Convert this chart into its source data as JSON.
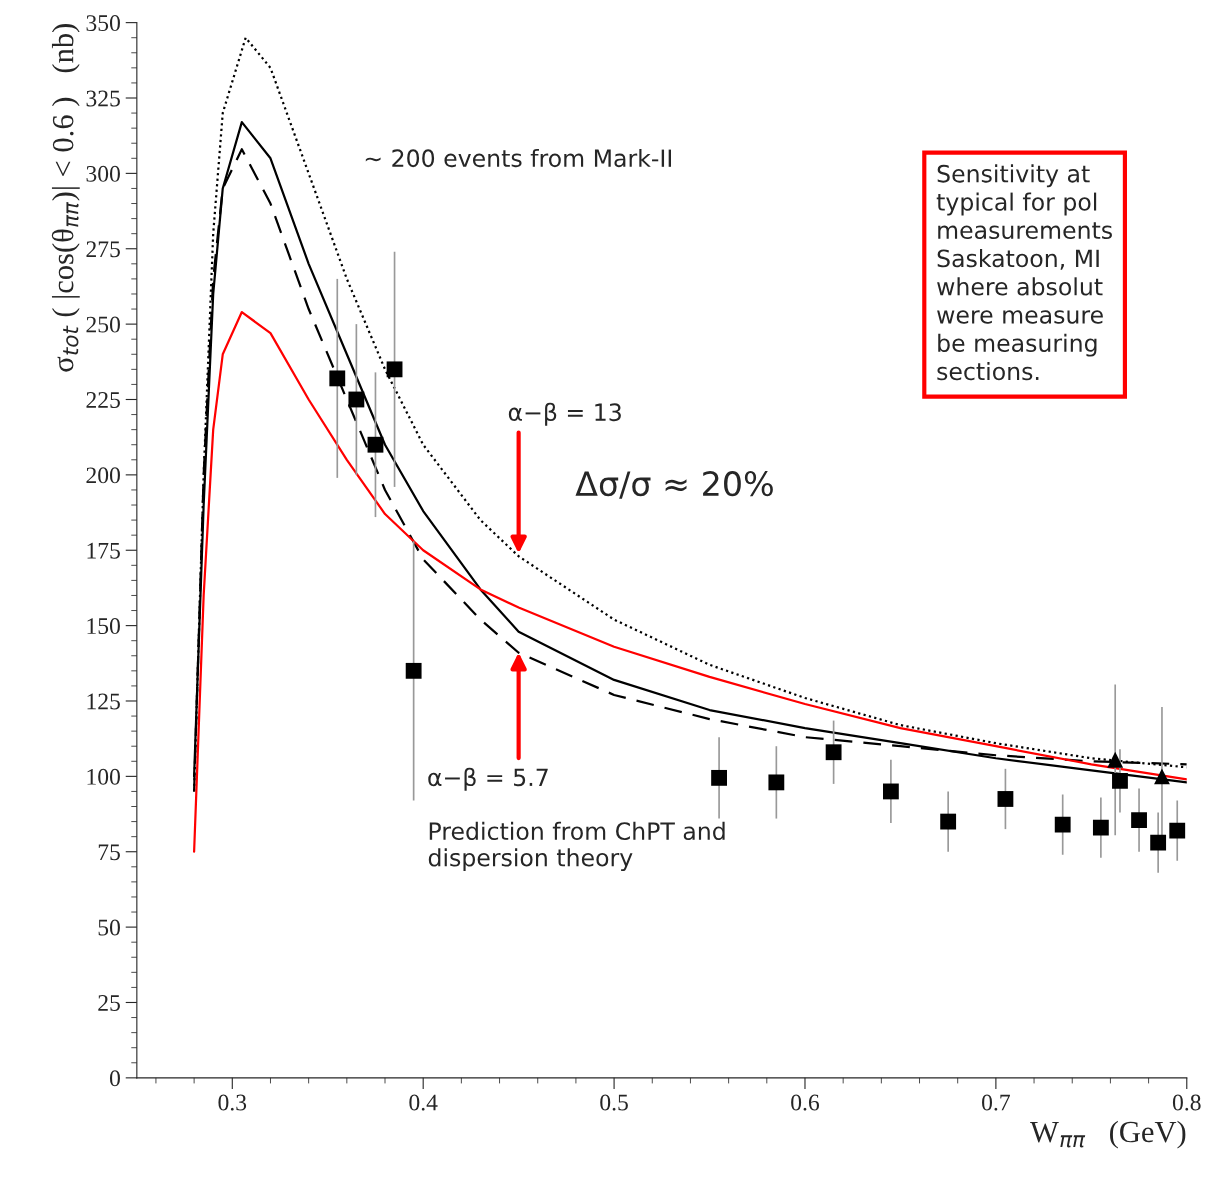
{
  "chart_data": {
    "type": "line",
    "xlabel": "W$_{ππ}$   (GeV)",
    "ylabel": "σ$_{tot}$ ( |cos(θ$_{ππ}$)| < 0.6 )   (nb)",
    "xlim": [
      0.25,
      0.8
    ],
    "xticks": [
      0.3,
      0.4,
      0.5,
      0.6,
      0.7,
      0.8
    ],
    "ylim": [
      0,
      350
    ],
    "yticks": [
      0,
      25,
      50,
      75,
      100,
      125,
      150,
      175,
      200,
      225,
      250,
      275,
      300,
      325,
      350
    ],
    "grid": false,
    "legend": false,
    "series": [
      {
        "color": "#000000",
        "line_style": "dotted",
        "marker": "none",
        "x": [
          0.28,
          0.285,
          0.29,
          0.295,
          0.307,
          0.32,
          0.34,
          0.36,
          0.38,
          0.4,
          0.43,
          0.45,
          0.5,
          0.55,
          0.6,
          0.65,
          0.7,
          0.75,
          0.8
        ],
        "values": [
          95,
          200,
          280,
          320,
          345,
          335,
          300,
          265,
          235,
          210,
          185,
          173,
          152,
          137,
          126,
          117,
          111,
          106,
          103
        ]
      },
      {
        "color": "#000000",
        "line_style": "solid",
        "marker": "none",
        "x": [
          0.28,
          0.285,
          0.29,
          0.295,
          0.305,
          0.32,
          0.34,
          0.36,
          0.38,
          0.4,
          0.43,
          0.45,
          0.5,
          0.55,
          0.6,
          0.65,
          0.7,
          0.75,
          0.8
        ],
        "values": [
          100,
          190,
          260,
          295,
          317,
          305,
          270,
          240,
          210,
          188,
          162,
          148,
          132,
          122,
          116,
          111,
          106,
          102,
          98
        ]
      },
      {
        "color": "#000000",
        "line_style": "dashed",
        "marker": "none",
        "x": [
          0.28,
          0.285,
          0.29,
          0.295,
          0.305,
          0.32,
          0.34,
          0.36,
          0.38,
          0.4,
          0.43,
          0.45,
          0.5,
          0.55,
          0.6,
          0.65,
          0.7,
          0.75,
          0.8
        ],
        "values": [
          95,
          200,
          265,
          295,
          308,
          290,
          255,
          225,
          195,
          172,
          152,
          141,
          127,
          119,
          113,
          110,
          107,
          105,
          104
        ]
      },
      {
        "color": "#ff0000",
        "line_style": "solid",
        "marker": "none",
        "x": [
          0.28,
          0.285,
          0.29,
          0.295,
          0.305,
          0.32,
          0.34,
          0.36,
          0.38,
          0.4,
          0.43,
          0.45,
          0.5,
          0.55,
          0.6,
          0.65,
          0.7,
          0.75,
          0.8
        ],
        "values": [
          75,
          160,
          215,
          240,
          254,
          247,
          225,
          205,
          187,
          175,
          162,
          156,
          143,
          133,
          124,
          116,
          110,
          104,
          99
        ]
      },
      {
        "type": "scatter",
        "color": "#000000",
        "marker": "square",
        "x": [
          0.355,
          0.365,
          0.375,
          0.385,
          0.395,
          0.555,
          0.585,
          0.615,
          0.645,
          0.675,
          0.705,
          0.735,
          0.755,
          0.765,
          0.775,
          0.785,
          0.795
        ],
        "values": [
          232,
          225,
          210,
          235,
          135,
          99.5,
          98,
          108,
          95,
          85,
          92.5,
          84,
          83,
          98.5,
          85.5,
          78,
          82
        ],
        "errors": [
          33,
          25,
          24,
          39,
          43,
          13.5,
          12,
          10.5,
          10.5,
          10,
          10,
          10,
          10,
          10.5,
          10.5,
          10,
          10
        ]
      },
      {
        "type": "scatter",
        "color": "#000000",
        "marker": "triangle",
        "x": [
          0.7625,
          0.787
        ],
        "values": [
          105.5,
          100
        ],
        "errors": [
          25,
          23
        ]
      }
    ],
    "annotations": [
      "~ 200 events from Mark-II",
      {
        "text": "α−β = 13",
        "x": 0.45,
        "y": 173
      },
      "Δσ/σ ≈ 20%",
      {
        "text": "α−β = 5.7",
        "x": 0.45,
        "y": 142
      },
      "Prediction from ChPT and\ndispersion theory",
      "Sensitivity at\ntypical for pol\nmeasurements\nSaskatoon, MI\nwhere absolut\nwere measure\nbe measuring\nsections."
    ]
  }
}
